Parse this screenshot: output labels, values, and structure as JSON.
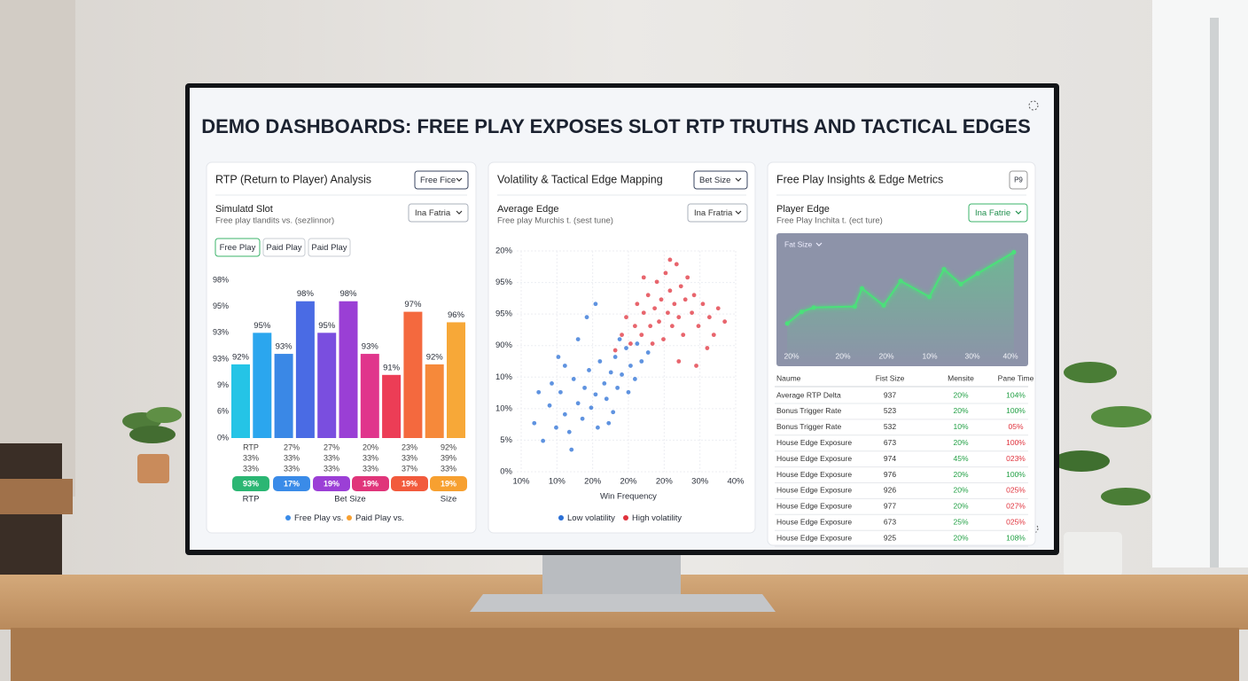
{
  "title": "DEMO DASHBOARDS: FREE PLAY EXPOSES SLOT RTP TRUTHS AND TACTICAL EDGES",
  "panels": [
    {
      "title": "RTP (Return to Player) Analysis",
      "dropdown": "Free Fice",
      "subtitle": "Simulatd Slot",
      "caption": "Free play tlandits vs. (sezlinnor)",
      "select": "Ina Fatria",
      "tabs": [
        "Free Play",
        "Paid Play",
        "Paid Play"
      ]
    },
    {
      "title": "Volatility & Tactical Edge Mapping",
      "dropdown": "Bet Size",
      "subtitle": "Average Edge",
      "caption": "Free play Murchis t. (sest tune)",
      "select": "Ina Fratria"
    },
    {
      "title": "Free Play Insights & Edge Metrics",
      "button": "P9",
      "subtitle": "Player Edge",
      "caption": "Free Play Inchita t. (ect ture)",
      "select": "Ina Fatrie"
    }
  ],
  "chart_data": [
    {
      "type": "bar",
      "values": [
        92,
        95,
        93,
        98,
        95,
        98,
        93,
        91,
        97,
        92,
        96
      ],
      "value_labels": [
        "92%",
        "95%",
        "93%",
        "98%",
        "95%",
        "98%",
        "93%",
        "91%",
        "97%",
        "92%",
        "96%"
      ],
      "colors": [
        "#25c4e6",
        "#2ba6ee",
        "#3a88e6",
        "#4a6be4",
        "#7a4edf",
        "#9a3fd5",
        "#e0358c",
        "#ec3d56",
        "#f4693e",
        "#f6893a",
        "#f7a838"
      ],
      "ylim": [
        85,
        100
      ],
      "y_labels": [
        "98%",
        "95%",
        "93%",
        "93%",
        "9%",
        "6%",
        "0%"
      ],
      "rows": [
        [
          "RTP",
          "27%",
          "27%",
          "20%",
          "23%",
          "92%"
        ],
        [
          "33%",
          "33%",
          "33%",
          "33%",
          "33%",
          "39%"
        ],
        [
          "33%",
          "33%",
          "33%",
          "33%",
          "37%",
          "33%"
        ]
      ],
      "pills": [
        {
          "label": "93%",
          "color": "#2bb673"
        },
        {
          "label": "17%",
          "color": "#3a8be8"
        },
        {
          "label": "19%",
          "color": "#9b3fd6"
        },
        {
          "label": "19%",
          "color": "#e0357a"
        },
        {
          "label": "19%",
          "color": "#f25a3c"
        },
        {
          "label": "19%",
          "color": "#f7a030"
        }
      ],
      "footer_labels": [
        "RTP",
        "Bet Size",
        "Size"
      ],
      "legend": [
        {
          "name": "Free Play vs.",
          "color": "#3a8be8"
        },
        {
          "name": "Paid Play vs.",
          "color": "#f7a030"
        }
      ]
    },
    {
      "type": "scatter",
      "xlim": [
        0,
        100
      ],
      "ylim": [
        0,
        100
      ],
      "y_labels": [
        "20%",
        "95%",
        "95%",
        "90%",
        "10%",
        "10%",
        "5%",
        "0%"
      ],
      "x_labels": [
        "10%",
        "10%",
        "20%",
        "20%",
        "20%",
        "30%",
        "40%"
      ],
      "x_label": "Win Frequency",
      "series": [
        {
          "name": "Low volatility",
          "color": "#2a6fd6",
          "x": [
            8,
            12,
            15,
            18,
            20,
            22,
            24,
            26,
            28,
            30,
            31,
            33,
            34,
            36,
            37,
            38,
            40,
            41,
            43,
            44,
            45,
            46,
            48,
            50,
            51,
            52,
            54,
            55,
            57,
            16,
            22,
            28,
            32,
            36,
            19,
            10,
            25,
            42,
            60,
            47
          ],
          "values": [
            22,
            14,
            30,
            20,
            36,
            26,
            18,
            42,
            31,
            24,
            38,
            46,
            29,
            35,
            20,
            50,
            40,
            33,
            45,
            27,
            52,
            38,
            44,
            56,
            36,
            48,
            42,
            58,
            50,
            40,
            48,
            60,
            70,
            76,
            52,
            36,
            10,
            22,
            54,
            60
          ]
        },
        {
          "name": "High volatility",
          "color": "#e0323c",
          "x": [
            45,
            48,
            50,
            52,
            54,
            55,
            57,
            58,
            60,
            61,
            62,
            63,
            64,
            65,
            66,
            67,
            68,
            69,
            70,
            71,
            72,
            73,
            74,
            75,
            76,
            77,
            78,
            80,
            81,
            83,
            85,
            87,
            88,
            90,
            92,
            95,
            74,
            82,
            70,
            58
          ],
          "values": [
            55,
            62,
            70,
            58,
            66,
            76,
            62,
            72,
            80,
            66,
            58,
            74,
            86,
            68,
            78,
            60,
            90,
            72,
            82,
            66,
            76,
            94,
            70,
            84,
            62,
            78,
            88,
            72,
            80,
            66,
            76,
            56,
            70,
            62,
            74,
            68,
            50,
            48,
            96,
            88
          ]
        }
      ]
    },
    {
      "type": "line",
      "inner_label": "Fat Size",
      "color": "#4be07a",
      "xlim": [
        0,
        100
      ],
      "ylim": [
        0,
        100
      ],
      "x": [
        3,
        9,
        14,
        31,
        34,
        43,
        50,
        62,
        68,
        75,
        82,
        97
      ],
      "values": [
        21,
        32,
        36,
        37,
        54,
        38,
        61,
        46,
        72,
        58,
        68,
        88
      ],
      "x_labels": [
        "20%",
        "20%",
        "20%",
        "10%",
        "30%",
        "40%"
      ]
    }
  ],
  "table": {
    "columns": [
      "Naume",
      "Fist Size",
      "Mensite",
      "Pane Time"
    ],
    "metric_color": "#22a045",
    "rows": [
      [
        "Average RTP Delta",
        "937",
        "20%",
        "104%"
      ],
      [
        "Bonus Trigger Rate",
        "523",
        "20%",
        "100%"
      ],
      [
        "Bonus Trigger Rate",
        "532",
        "10%",
        "05%"
      ],
      [
        "House Edge Exposure",
        "673",
        "20%",
        "100%"
      ],
      [
        "House Edge Exposure",
        "974",
        "45%",
        "023%"
      ],
      [
        "House Edge Exposure",
        "976",
        "20%",
        "100%"
      ],
      [
        "House Edge Exposure",
        "926",
        "20%",
        "025%"
      ],
      [
        "House Edge Exposure",
        "977",
        "20%",
        "027%"
      ],
      [
        "House Edge Exposure",
        "673",
        "25%",
        "025%"
      ],
      [
        "House Edge Exposure",
        "925",
        "20%",
        "108%"
      ]
    ],
    "time_colors": [
      "#22a045",
      "#22a045",
      "#e0323c",
      "#e0323c",
      "#e0323c",
      "#22a045",
      "#e0323c",
      "#e0323c",
      "#e0323c",
      "#22a045"
    ]
  }
}
